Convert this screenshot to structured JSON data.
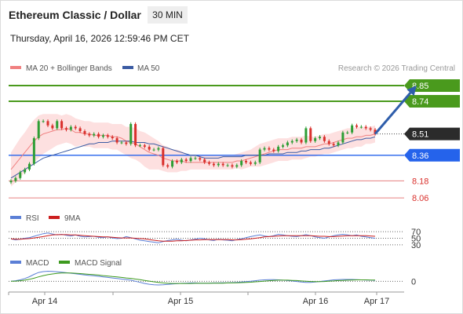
{
  "header": {
    "title": "Ethereum Classic / Dollar",
    "interval": "30 MIN",
    "timestamp": "Thursday, April 16, 2026 12:59:46 PM CET"
  },
  "legend": {
    "ma20_label": "MA 20 + Bollinger Bands",
    "ma50_label": "MA 50",
    "credit": "Research © 2026 Trading Central",
    "rsi_label": "RSI",
    "rsi_ma_label": "9MA",
    "macd_label": "MACD",
    "macd_signal_label": "MACD Signal"
  },
  "colors": {
    "candle_up": "#2e9e35",
    "candle_down": "#d9302c",
    "ma20": "#f08080",
    "ma50": "#3b5ba3",
    "bollinger_fill": "#fcd6d6",
    "resistance": "#4a9a1d",
    "support_blue": "#2563eb",
    "support_red": "#e06060",
    "current": "#2b2b2b",
    "arrow": "#2f5eab",
    "rsi": "#5b7fd6",
    "rsi_ma": "#cc1f1f",
    "macd": "#5b7fd6",
    "macd_signal": "#3d9a1f"
  },
  "chart_data": {
    "type": "candlestick",
    "x_ticks": [
      "Apr 14",
      "Apr 15",
      "Apr 16",
      "Apr 17"
    ],
    "y_min": 8.0,
    "y_max": 8.9,
    "current_price": {
      "label": "8.51",
      "value": 8.51
    },
    "levels": [
      {
        "label": "8.85",
        "value": 8.85,
        "kind": "resistance"
      },
      {
        "label": "8.74",
        "value": 8.74,
        "kind": "resistance"
      },
      {
        "label": "8.36",
        "value": 8.36,
        "kind": "support"
      },
      {
        "label": "8.18",
        "value": 8.18,
        "kind": "minor"
      },
      {
        "label": "8.06",
        "value": 8.06,
        "kind": "minor"
      }
    ],
    "forecast_arrow": {
      "from_index": 79,
      "from_value": 8.51,
      "to_index": 88,
      "to_value": 8.85
    },
    "closes": [
      8.18,
      8.2,
      8.24,
      8.26,
      8.3,
      8.48,
      8.6,
      8.6,
      8.57,
      8.55,
      8.6,
      8.55,
      8.54,
      8.56,
      8.55,
      8.53,
      8.51,
      8.5,
      8.51,
      8.49,
      8.5,
      8.49,
      8.48,
      8.45,
      8.45,
      8.44,
      8.58,
      8.43,
      8.43,
      8.42,
      8.4,
      8.4,
      8.41,
      8.29,
      8.28,
      8.32,
      8.31,
      8.33,
      8.32,
      8.34,
      8.34,
      8.33,
      8.31,
      8.3,
      8.29,
      8.3,
      8.29,
      8.29,
      8.28,
      8.29,
      8.32,
      8.31,
      8.3,
      8.31,
      8.4,
      8.41,
      8.4,
      8.39,
      8.42,
      8.43,
      8.45,
      8.46,
      8.47,
      8.45,
      8.55,
      8.46,
      8.48,
      8.49,
      8.46,
      8.44,
      8.43,
      8.45,
      8.52,
      8.52,
      8.57,
      8.56,
      8.56,
      8.55,
      8.54,
      8.51
    ],
    "ma20": [
      8.26,
      8.3,
      8.34,
      8.38,
      8.42,
      8.46,
      8.49,
      8.51,
      8.52,
      8.53,
      8.54,
      8.54,
      8.55,
      8.54,
      8.52,
      8.52,
      8.51,
      8.51,
      8.5,
      8.5,
      8.5,
      8.5,
      8.49,
      8.49,
      8.48,
      8.46,
      8.45,
      8.44,
      8.42,
      8.4,
      8.38,
      8.37,
      8.36,
      8.34,
      8.33,
      8.32,
      8.32,
      8.32,
      8.31,
      8.31,
      8.31,
      8.31,
      8.31,
      8.31,
      8.31,
      8.31,
      8.31,
      8.31,
      8.31,
      8.32,
      8.32,
      8.33,
      8.34,
      8.35,
      8.36,
      8.37,
      8.38,
      8.39,
      8.4,
      8.4,
      8.4,
      8.41,
      8.41,
      8.41,
      8.42,
      8.42,
      8.42,
      8.43,
      8.44,
      8.44,
      8.45,
      8.46,
      8.47,
      8.48,
      8.48,
      8.49,
      8.49,
      8.5,
      8.5,
      8.51
    ],
    "ma50": [
      8.2,
      8.22,
      8.24,
      8.26,
      8.28,
      8.3,
      8.32,
      8.34,
      8.35,
      8.36,
      8.37,
      8.38,
      8.39,
      8.4,
      8.41,
      8.42,
      8.43,
      8.44,
      8.44,
      8.45,
      8.45,
      8.45,
      8.46,
      8.46,
      8.46,
      8.46,
      8.46,
      8.45,
      8.45,
      8.45,
      8.44,
      8.44,
      8.43,
      8.42,
      8.41,
      8.4,
      8.39,
      8.38,
      8.37,
      8.36,
      8.36,
      8.35,
      8.34,
      8.34,
      8.34,
      8.34,
      8.35,
      8.35,
      8.35,
      8.35,
      8.35,
      8.36,
      8.36,
      8.36,
      8.36,
      8.36,
      8.37,
      8.37,
      8.37,
      8.37,
      8.38,
      8.38,
      8.38,
      8.39,
      8.39,
      8.4,
      8.4,
      8.4,
      8.41,
      8.41,
      8.42,
      8.43,
      8.44,
      8.45,
      8.46,
      8.47,
      8.47,
      8.48,
      8.48,
      8.49
    ],
    "bollinger_band": [
      0.12,
      0.13,
      0.14,
      0.14,
      0.15,
      0.15,
      0.15,
      0.14,
      0.13,
      0.12,
      0.11,
      0.1,
      0.1,
      0.1,
      0.1,
      0.09,
      0.09,
      0.09,
      0.09,
      0.09,
      0.09,
      0.09,
      0.09,
      0.09,
      0.1,
      0.1,
      0.11,
      0.11,
      0.11,
      0.12,
      0.12,
      0.11,
      0.1,
      0.09,
      0.09,
      0.08,
      0.08,
      0.07,
      0.06,
      0.05,
      0.05,
      0.05,
      0.05,
      0.05,
      0.05,
      0.05,
      0.05,
      0.05,
      0.05,
      0.05,
      0.06,
      0.06,
      0.06,
      0.07,
      0.08,
      0.08,
      0.08,
      0.08,
      0.08,
      0.08,
      0.08,
      0.08,
      0.08,
      0.08,
      0.08,
      0.07,
      0.07,
      0.07,
      0.07,
      0.07,
      0.07,
      0.07,
      0.07,
      0.07,
      0.07,
      0.07,
      0.07,
      0.06,
      0.06,
      0.06
    ],
    "rsi": {
      "ticks": [
        "70",
        "50",
        "30"
      ],
      "tick_values": [
        70,
        50,
        30
      ],
      "values": [
        48,
        45,
        47,
        50,
        52,
        56,
        60,
        64,
        66,
        63,
        60,
        62,
        59,
        57,
        60,
        56,
        54,
        55,
        56,
        53,
        52,
        54,
        51,
        49,
        50,
        55,
        52,
        48,
        44,
        42,
        40,
        38,
        36,
        40,
        43,
        45,
        47,
        44,
        42,
        45,
        47,
        50,
        48,
        45,
        43,
        47,
        45,
        44,
        42,
        46,
        48,
        52,
        55,
        58,
        60,
        57,
        55,
        58,
        62,
        60,
        58,
        56,
        55,
        58,
        61,
        58,
        54,
        52,
        50,
        54,
        58,
        60,
        62,
        60,
        58,
        60,
        56,
        54,
        52,
        50
      ],
      "ma_values": [
        48,
        47,
        47,
        48,
        49,
        51,
        53,
        55,
        58,
        60,
        61,
        61,
        61,
        60,
        60,
        59,
        58,
        57,
        56,
        55,
        54,
        54,
        53,
        52,
        51,
        51,
        51,
        50,
        49,
        48,
        46,
        44,
        42,
        41,
        41,
        41,
        42,
        42,
        43,
        44,
        45,
        45,
        46,
        46,
        46,
        46,
        46,
        46,
        45,
        45,
        46,
        47,
        48,
        50,
        52,
        54,
        55,
        56,
        57,
        58,
        58,
        58,
        58,
        58,
        58,
        58,
        57,
        56,
        56,
        55,
        55,
        56,
        57,
        58,
        58,
        58,
        58,
        58,
        57,
        56
      ]
    },
    "macd": {
      "ticks": [
        "0"
      ],
      "tick_values": [
        0
      ],
      "y_range": [
        -0.05,
        0.07
      ],
      "values": [
        0.0,
        0.003,
        0.008,
        0.015,
        0.025,
        0.038,
        0.048,
        0.053,
        0.055,
        0.054,
        0.052,
        0.05,
        0.047,
        0.044,
        0.041,
        0.038,
        0.035,
        0.032,
        0.03,
        0.027,
        0.024,
        0.021,
        0.018,
        0.015,
        0.012,
        0.009,
        0.006,
        0.0,
        -0.006,
        -0.012,
        -0.016,
        -0.019,
        -0.02,
        -0.019,
        -0.017,
        -0.015,
        -0.013,
        -0.011,
        -0.01,
        -0.009,
        -0.009,
        -0.01,
        -0.01,
        -0.01,
        -0.009,
        -0.009,
        -0.008,
        -0.008,
        -0.007,
        -0.006,
        -0.004,
        -0.002,
        0.0,
        0.003,
        0.006,
        0.008,
        0.009,
        0.009,
        0.008,
        0.006,
        0.004,
        0.002,
        -0.001,
        -0.004,
        -0.006,
        -0.006,
        -0.004,
        -0.001,
        0.002,
        0.005,
        0.008,
        0.009,
        0.01,
        0.01,
        0.01,
        0.009,
        0.008,
        0.007,
        0.006,
        0.005
      ],
      "signal_values": [
        0.0,
        0.001,
        0.003,
        0.006,
        0.011,
        0.017,
        0.024,
        0.031,
        0.036,
        0.04,
        0.043,
        0.045,
        0.045,
        0.045,
        0.044,
        0.042,
        0.04,
        0.038,
        0.036,
        0.034,
        0.031,
        0.029,
        0.026,
        0.024,
        0.021,
        0.018,
        0.016,
        0.012,
        0.009,
        0.005,
        0.001,
        -0.003,
        -0.006,
        -0.009,
        -0.011,
        -0.012,
        -0.012,
        -0.012,
        -0.012,
        -0.012,
        -0.011,
        -0.011,
        -0.011,
        -0.011,
        -0.01,
        -0.01,
        -0.01,
        -0.009,
        -0.009,
        -0.008,
        -0.007,
        -0.006,
        -0.005,
        -0.003,
        -0.001,
        0.001,
        0.003,
        0.005,
        0.006,
        0.006,
        0.006,
        0.005,
        0.004,
        0.002,
        0.0,
        -0.001,
        -0.002,
        -0.002,
        -0.001,
        0.001,
        0.002,
        0.004,
        0.005,
        0.006,
        0.007,
        0.008,
        0.008,
        0.008,
        0.007,
        0.007
      ]
    }
  }
}
